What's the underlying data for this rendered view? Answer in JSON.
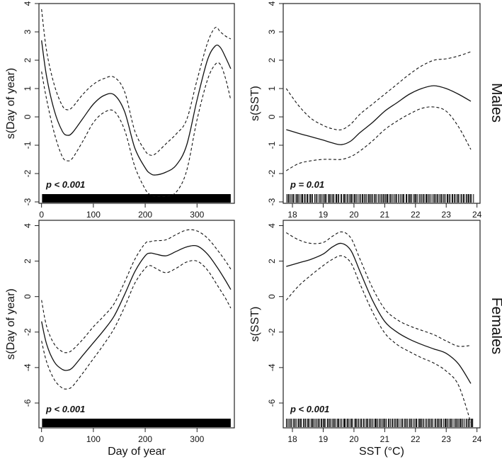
{
  "chart_data": [
    {
      "type": "line",
      "panel": "males-day",
      "row": "Males",
      "title": "",
      "xlabel": "",
      "ylabel": "s(Day of year)",
      "xlim": [
        -5,
        372
      ],
      "ylim": [
        -3.05,
        4.0
      ],
      "xticks": [
        0,
        100,
        200,
        300
      ],
      "yticks": [
        -3,
        -2,
        -1,
        0,
        1,
        2,
        3,
        4
      ],
      "annotation": "p < 0.001",
      "rug": "dense",
      "series": [
        {
          "name": "fit",
          "style": "solid",
          "x": [
            0,
            10,
            25,
            40,
            50,
            60,
            80,
            100,
            120,
            140,
            160,
            180,
            200,
            210,
            220,
            240,
            260,
            280,
            300,
            320,
            335,
            345,
            355,
            365
          ],
          "y": [
            2.7,
            1.4,
            0.2,
            -0.5,
            -0.65,
            -0.55,
            -0.05,
            0.45,
            0.75,
            0.78,
            0.2,
            -1.1,
            -1.8,
            -2.0,
            -2.05,
            -1.95,
            -1.7,
            -1.0,
            0.6,
            2.0,
            2.5,
            2.45,
            2.1,
            1.7
          ]
        },
        {
          "name": "upper",
          "style": "dashed",
          "x": [
            0,
            10,
            25,
            40,
            50,
            60,
            80,
            100,
            120,
            140,
            160,
            180,
            200,
            210,
            220,
            240,
            260,
            280,
            300,
            320,
            335,
            345,
            355,
            365
          ],
          "y": [
            3.8,
            2.3,
            1.1,
            0.4,
            0.25,
            0.35,
            0.8,
            1.15,
            1.35,
            1.4,
            0.9,
            -0.5,
            -1.2,
            -1.35,
            -1.3,
            -0.95,
            -0.6,
            -0.1,
            1.3,
            2.6,
            3.15,
            3.0,
            2.85,
            2.75
          ]
        },
        {
          "name": "lower",
          "style": "dashed",
          "x": [
            0,
            10,
            25,
            40,
            50,
            60,
            80,
            100,
            120,
            140,
            160,
            180,
            200,
            210,
            220,
            240,
            260,
            280,
            300,
            320,
            335,
            345,
            355,
            365
          ],
          "y": [
            1.6,
            0.6,
            -0.6,
            -1.4,
            -1.55,
            -1.45,
            -0.85,
            -0.2,
            0.15,
            0.2,
            -0.45,
            -1.75,
            -2.55,
            -2.75,
            -2.8,
            -2.8,
            -2.65,
            -1.9,
            -0.1,
            1.3,
            1.85,
            1.85,
            1.35,
            0.6
          ]
        }
      ]
    },
    {
      "type": "line",
      "panel": "males-sst",
      "row": "Males",
      "title": "",
      "xlabel": "",
      "ylabel": "s(SST)",
      "xlim": [
        17.7,
        24.1
      ],
      "ylim": [
        -3.05,
        4.0
      ],
      "xticks": [
        18,
        19,
        20,
        21,
        22,
        23,
        24
      ],
      "yticks": [
        -3,
        -2,
        -1,
        0,
        1,
        2,
        3,
        4
      ],
      "annotation": "p = 0.01",
      "rug": "sparse",
      "series": [
        {
          "name": "fit",
          "style": "solid",
          "x": [
            17.8,
            18.2,
            18.6,
            19.0,
            19.3,
            19.6,
            19.9,
            20.2,
            20.6,
            21.0,
            21.4,
            21.8,
            22.2,
            22.6,
            23.0,
            23.4,
            23.8
          ],
          "y": [
            -0.45,
            -0.58,
            -0.7,
            -0.82,
            -0.92,
            -0.98,
            -0.85,
            -0.55,
            -0.2,
            0.2,
            0.5,
            0.8,
            1.0,
            1.1,
            1.0,
            0.8,
            0.55
          ]
        },
        {
          "name": "upper",
          "style": "dashed",
          "x": [
            17.8,
            18.2,
            18.6,
            19.0,
            19.3,
            19.6,
            19.9,
            20.2,
            20.6,
            21.0,
            21.4,
            21.8,
            22.2,
            22.6,
            23.0,
            23.4,
            23.8
          ],
          "y": [
            1.0,
            0.4,
            -0.05,
            -0.3,
            -0.42,
            -0.45,
            -0.25,
            0.1,
            0.45,
            0.8,
            1.15,
            1.5,
            1.8,
            2.0,
            2.05,
            2.15,
            2.3
          ]
        },
        {
          "name": "lower",
          "style": "dashed",
          "x": [
            17.8,
            18.2,
            18.6,
            19.0,
            19.3,
            19.6,
            19.9,
            20.2,
            20.6,
            21.0,
            21.4,
            21.8,
            22.2,
            22.6,
            23.0,
            23.4,
            23.8
          ],
          "y": [
            -1.9,
            -1.65,
            -1.55,
            -1.5,
            -1.5,
            -1.5,
            -1.4,
            -1.2,
            -0.85,
            -0.45,
            -0.15,
            0.1,
            0.3,
            0.35,
            0.2,
            -0.35,
            -1.15
          ]
        }
      ]
    },
    {
      "type": "line",
      "panel": "females-day",
      "row": "Females",
      "title": "",
      "xlabel": "Day of year",
      "ylabel": "s(Day of year)",
      "xlim": [
        -5,
        372
      ],
      "ylim": [
        -7.4,
        4.3
      ],
      "xticks": [
        0,
        100,
        200,
        300
      ],
      "yticks": [
        -6,
        -4,
        -2,
        0,
        2,
        4
      ],
      "annotation": "p < 0.001",
      "rug": "dense",
      "series": [
        {
          "name": "fit",
          "style": "solid",
          "x": [
            0,
            10,
            25,
            40,
            50,
            60,
            80,
            100,
            120,
            140,
            160,
            180,
            200,
            210,
            220,
            240,
            260,
            280,
            300,
            320,
            340,
            355,
            365
          ],
          "y": [
            -1.4,
            -2.7,
            -3.7,
            -4.1,
            -4.15,
            -4.0,
            -3.3,
            -2.6,
            -1.9,
            -1.1,
            0.1,
            1.4,
            2.3,
            2.45,
            2.4,
            2.3,
            2.55,
            2.8,
            2.85,
            2.4,
            1.6,
            0.9,
            0.4
          ]
        },
        {
          "name": "upper",
          "style": "dashed",
          "x": [
            0,
            10,
            25,
            40,
            50,
            60,
            80,
            100,
            120,
            140,
            160,
            180,
            200,
            210,
            220,
            240,
            260,
            280,
            300,
            320,
            340,
            355,
            365
          ],
          "y": [
            -0.2,
            -1.7,
            -2.7,
            -3.1,
            -3.15,
            -3.0,
            -2.4,
            -1.7,
            -1.1,
            -0.4,
            0.8,
            2.1,
            3.0,
            3.1,
            3.15,
            3.2,
            3.5,
            3.75,
            3.7,
            3.3,
            2.6,
            2.0,
            1.55
          ]
        },
        {
          "name": "lower",
          "style": "dashed",
          "x": [
            0,
            10,
            25,
            40,
            50,
            60,
            80,
            100,
            120,
            140,
            160,
            180,
            200,
            210,
            220,
            240,
            260,
            280,
            300,
            320,
            340,
            355,
            365
          ],
          "y": [
            -2.5,
            -3.7,
            -4.7,
            -5.15,
            -5.2,
            -5.05,
            -4.3,
            -3.5,
            -2.7,
            -1.8,
            -0.6,
            0.75,
            1.6,
            1.75,
            1.6,
            1.35,
            1.6,
            1.95,
            2.0,
            1.5,
            0.6,
            -0.1,
            -0.65
          ]
        }
      ]
    },
    {
      "type": "line",
      "panel": "females-sst",
      "row": "Females",
      "title": "",
      "xlabel": "SST (°C)",
      "ylabel": "s(SST)",
      "xlim": [
        17.7,
        24.1
      ],
      "ylim": [
        -7.4,
        4.3
      ],
      "xticks": [
        18,
        19,
        20,
        21,
        22,
        23,
        24
      ],
      "yticks": [
        -6,
        -4,
        -2,
        0,
        2,
        4
      ],
      "annotation": "p < 0.001",
      "rug": "sparse",
      "series": [
        {
          "name": "fit",
          "style": "solid",
          "x": [
            17.8,
            18.2,
            18.6,
            19.0,
            19.3,
            19.6,
            19.9,
            20.2,
            20.6,
            21.0,
            21.4,
            21.8,
            22.2,
            22.6,
            23.0,
            23.4,
            23.8
          ],
          "y": [
            1.7,
            1.9,
            2.1,
            2.4,
            2.8,
            3.0,
            2.6,
            1.4,
            -0.2,
            -1.4,
            -2.0,
            -2.4,
            -2.7,
            -2.95,
            -3.2,
            -3.8,
            -4.9
          ]
        },
        {
          "name": "upper",
          "style": "dashed",
          "x": [
            17.8,
            18.2,
            18.6,
            19.0,
            19.3,
            19.6,
            19.9,
            20.2,
            20.6,
            21.0,
            21.4,
            21.8,
            22.2,
            22.6,
            23.0,
            23.4,
            23.8
          ],
          "y": [
            3.6,
            3.2,
            3.0,
            3.05,
            3.4,
            3.65,
            3.3,
            2.1,
            0.5,
            -0.7,
            -1.3,
            -1.65,
            -1.9,
            -2.15,
            -2.5,
            -2.8,
            -2.75
          ]
        },
        {
          "name": "lower",
          "style": "dashed",
          "x": [
            17.8,
            18.2,
            18.6,
            19.0,
            19.3,
            19.6,
            19.9,
            20.2,
            20.6,
            21.0,
            21.4,
            21.8,
            22.2,
            22.6,
            23.0,
            23.4,
            23.8
          ],
          "y": [
            -0.2,
            0.6,
            1.2,
            1.75,
            2.1,
            2.3,
            1.9,
            0.7,
            -0.85,
            -2.05,
            -2.7,
            -3.1,
            -3.45,
            -3.75,
            -4.2,
            -5.0,
            -7.1
          ]
        }
      ]
    }
  ]
}
